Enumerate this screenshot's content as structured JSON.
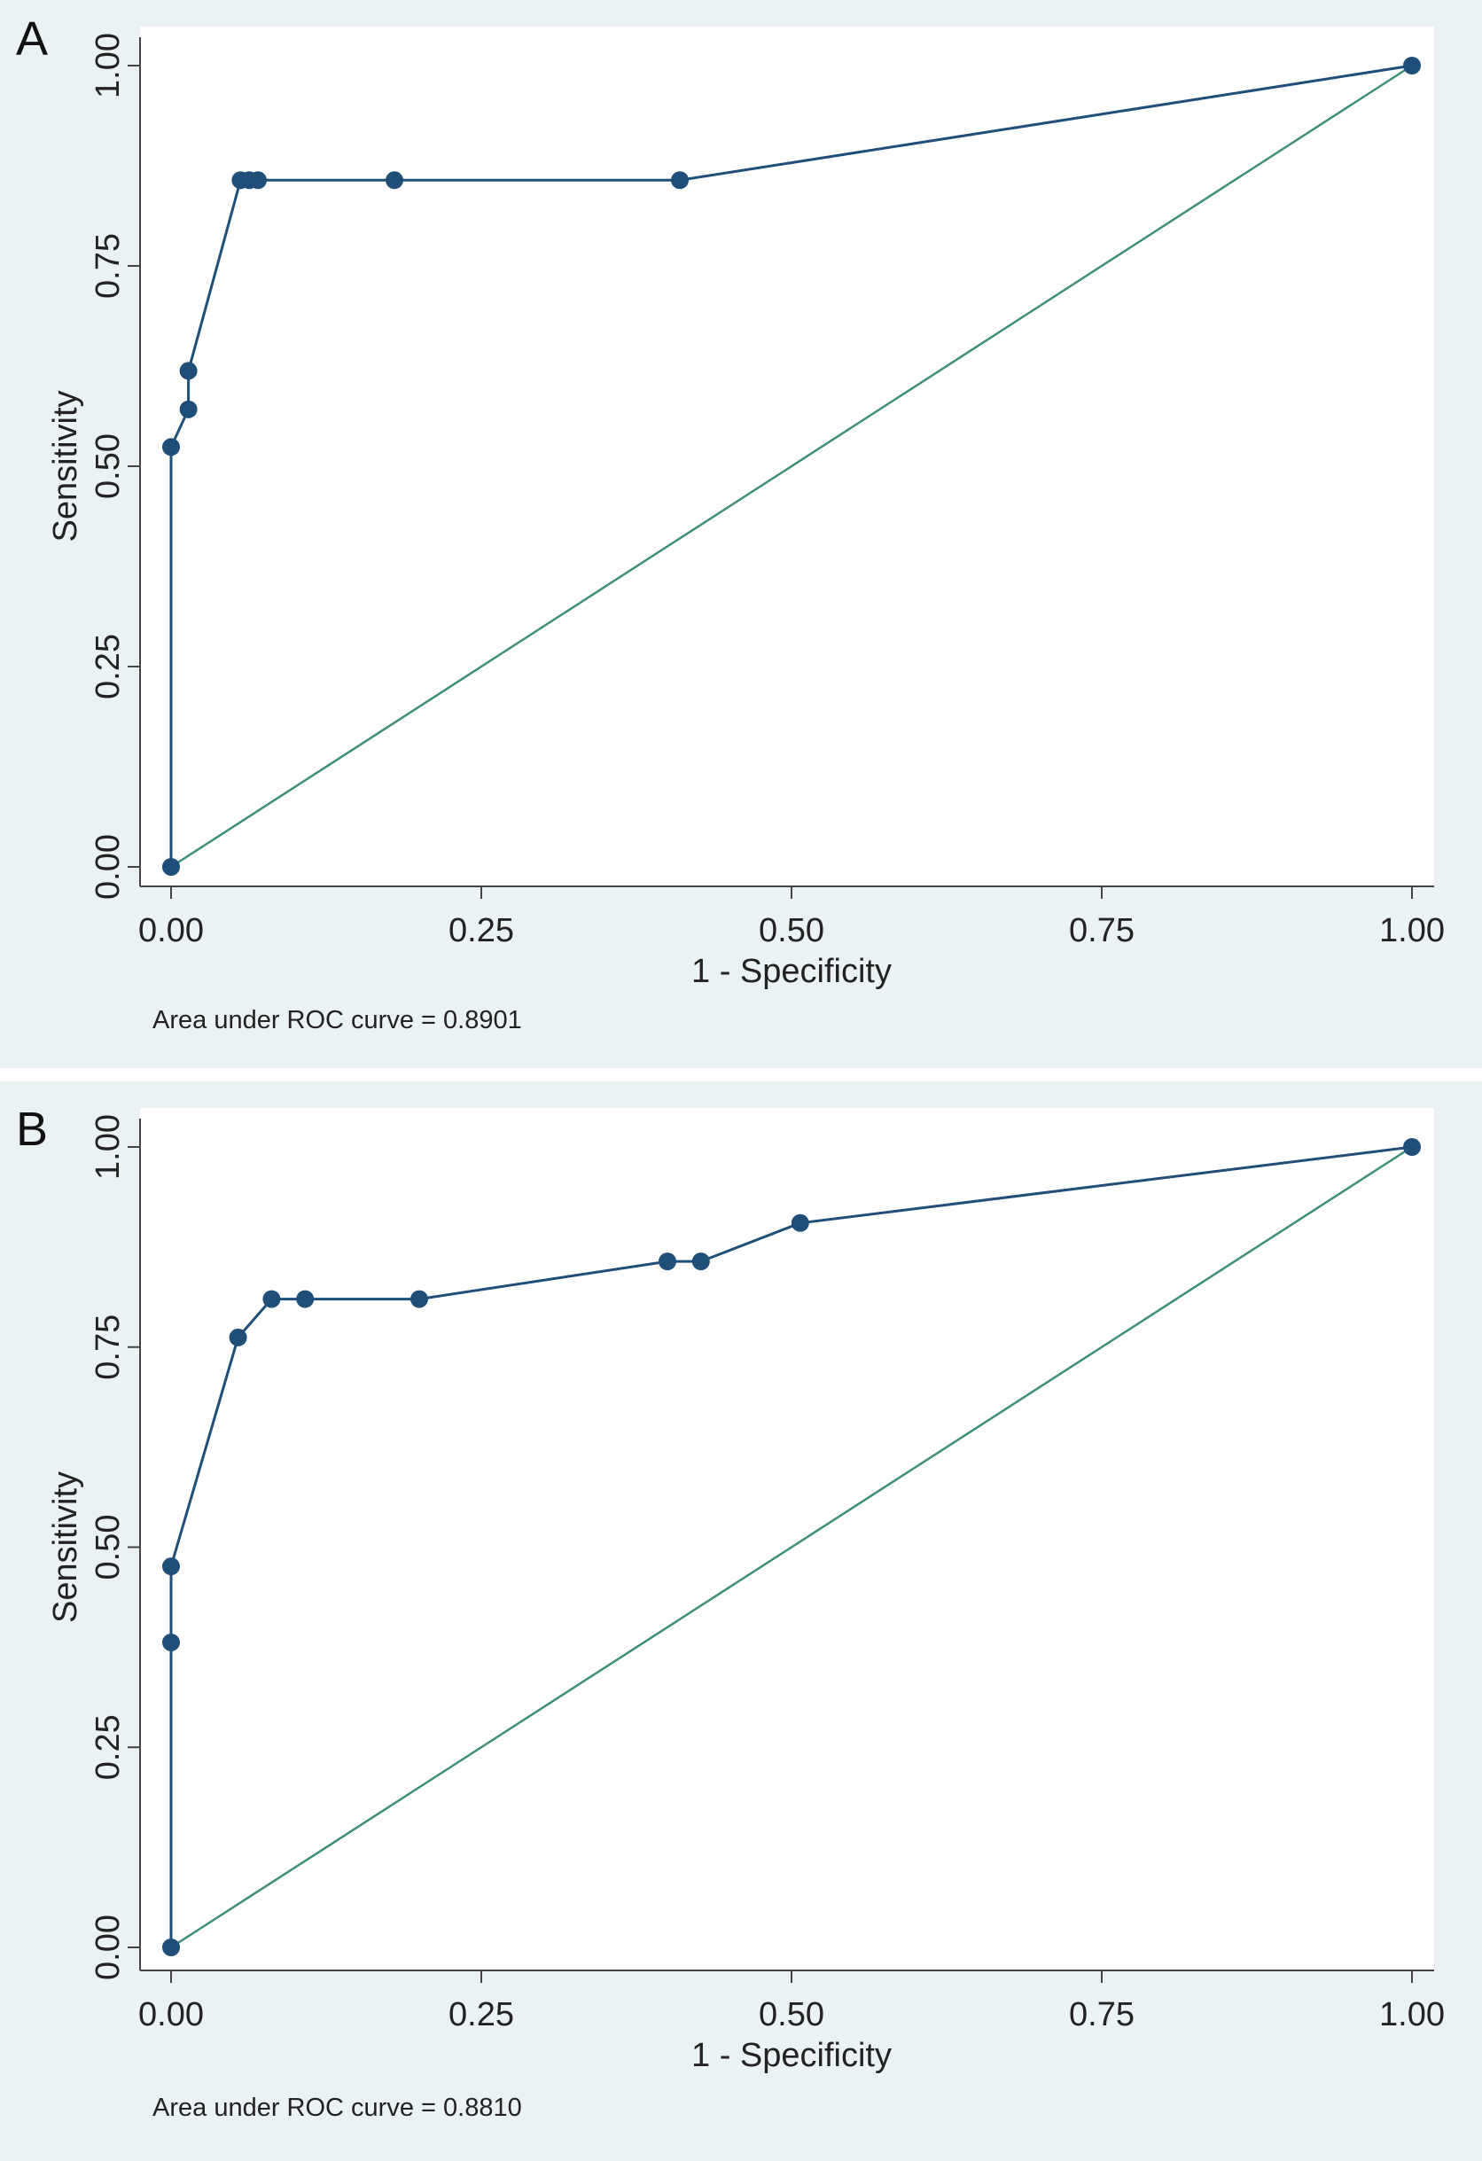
{
  "colors": {
    "roc": "#1f4e79",
    "reference": "#3d8f7a",
    "panel_bg": "#eaf2f3",
    "plot_bg": "#ffffff"
  },
  "chart_data": [
    {
      "type": "line",
      "panel_label": "A",
      "xlabel": "1 - Specificity",
      "ylabel": "Sensitivity",
      "xlim": [
        0,
        1
      ],
      "ylim": [
        0,
        1
      ],
      "x_ticks": [
        "0.00",
        "0.25",
        "0.50",
        "0.75",
        "1.00"
      ],
      "y_ticks": [
        "0.00",
        "0.25",
        "0.50",
        "0.75",
        "1.00"
      ],
      "grid": false,
      "note": "Area under ROC curve = 0.8901",
      "series": [
        {
          "kind": "roc",
          "x": [
            0,
            0,
            0.014,
            0.014,
            0.056,
            0.063,
            0.07,
            0.18,
            0.41,
            1.0
          ],
          "y": [
            0,
            0.524,
            0.571,
            0.619,
            0.857,
            0.857,
            0.857,
            0.857,
            0.857,
            1.0
          ]
        },
        {
          "kind": "reference",
          "x": [
            0,
            1
          ],
          "y": [
            0,
            1
          ]
        }
      ]
    },
    {
      "type": "line",
      "panel_label": "B",
      "xlabel": "1 - Specificity",
      "ylabel": "Sensitivity",
      "xlim": [
        0,
        1
      ],
      "ylim": [
        0,
        1
      ],
      "x_ticks": [
        "0.00",
        "0.25",
        "0.50",
        "0.75",
        "1.00"
      ],
      "y_ticks": [
        "0.00",
        "0.25",
        "0.50",
        "0.75",
        "1.00"
      ],
      "grid": false,
      "note": "Area under ROC curve = 0.8810",
      "series": [
        {
          "kind": "roc",
          "x": [
            0,
            0,
            0,
            0.054,
            0.081,
            0.108,
            0.2,
            0.4,
            0.427,
            0.507,
            1.0
          ],
          "y": [
            0,
            0.381,
            0.476,
            0.762,
            0.81,
            0.81,
            0.81,
            0.857,
            0.857,
            0.905,
            1.0
          ]
        },
        {
          "kind": "reference",
          "x": [
            0,
            1
          ],
          "y": [
            0,
            1
          ]
        }
      ]
    }
  ]
}
